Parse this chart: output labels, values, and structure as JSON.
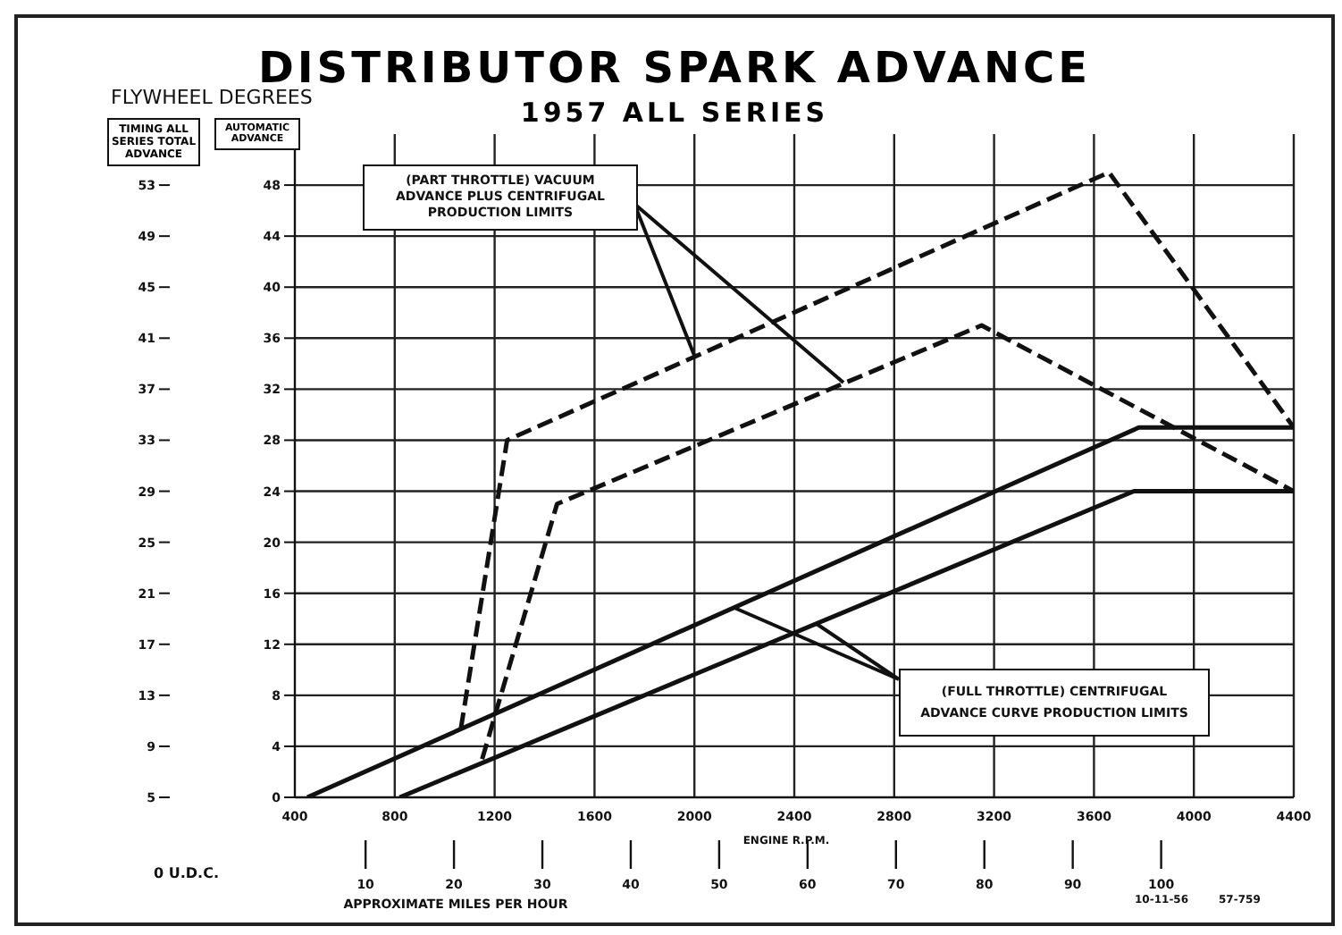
{
  "chart_data": {
    "type": "line",
    "title": "DISTRIBUTOR SPARK ADVANCE",
    "subtitle": "1957 ALL SERIES",
    "xlabel": "ENGINE R.P.M.",
    "x2label": "APPROXIMATE MILES PER HOUR",
    "ylabel": "AUTOMATIC ADVANCE",
    "y2label": "TIMING ALL SERIES TOTAL ADVANCE",
    "xlim": [
      400,
      4400
    ],
    "xticks": [
      400,
      800,
      1200,
      1600,
      2000,
      2400,
      2800,
      3200,
      3600,
      4000,
      4400
    ],
    "x2lim": [
      2,
      115
    ],
    "x2ticks": [
      10,
      20,
      30,
      40,
      50,
      60,
      70,
      80,
      90,
      100
    ],
    "ylim": [
      0,
      52
    ],
    "yticks": [
      0,
      4,
      8,
      12,
      16,
      20,
      24,
      28,
      32,
      36,
      40,
      44,
      48
    ],
    "y2lim": [
      5,
      57
    ],
    "y2ticks": [
      5,
      9,
      13,
      17,
      21,
      25,
      29,
      33,
      37,
      41,
      45,
      49,
      53
    ],
    "grid": true,
    "legend": false,
    "marker": "none",
    "annotations": [
      "FLYWHEEL DEGREES",
      "0 U.D.C.",
      "(PART THROTTLE) VACUUM ADVANCE PLUS CENTRIFUGAL PRODUCTION LIMITS",
      "(FULL THROTTLE) CENTRIFUGAL ADVANCE CURVE PRODUCTION LIMITS",
      "10-11-56",
      "57-759"
    ],
    "series": [
      {
        "color": "#111111",
        "line_style": "solid",
        "x": [
          450,
          3780,
          4400
        ],
        "values": [
          0,
          29,
          29
        ]
      },
      {
        "color": "#111111",
        "line_style": "solid",
        "x": [
          820,
          3760,
          4400
        ],
        "values": [
          0,
          24,
          24
        ]
      },
      {
        "color": "#111111",
        "line_style": "dashed",
        "x": [
          1065,
          1250,
          3660,
          4400
        ],
        "values": [
          5.4,
          28,
          49,
          29
        ]
      },
      {
        "color": "#111111",
        "line_style": "dashed",
        "x": [
          1150,
          1450,
          3150,
          4400
        ],
        "values": [
          3,
          23,
          37,
          24
        ]
      }
    ]
  }
}
